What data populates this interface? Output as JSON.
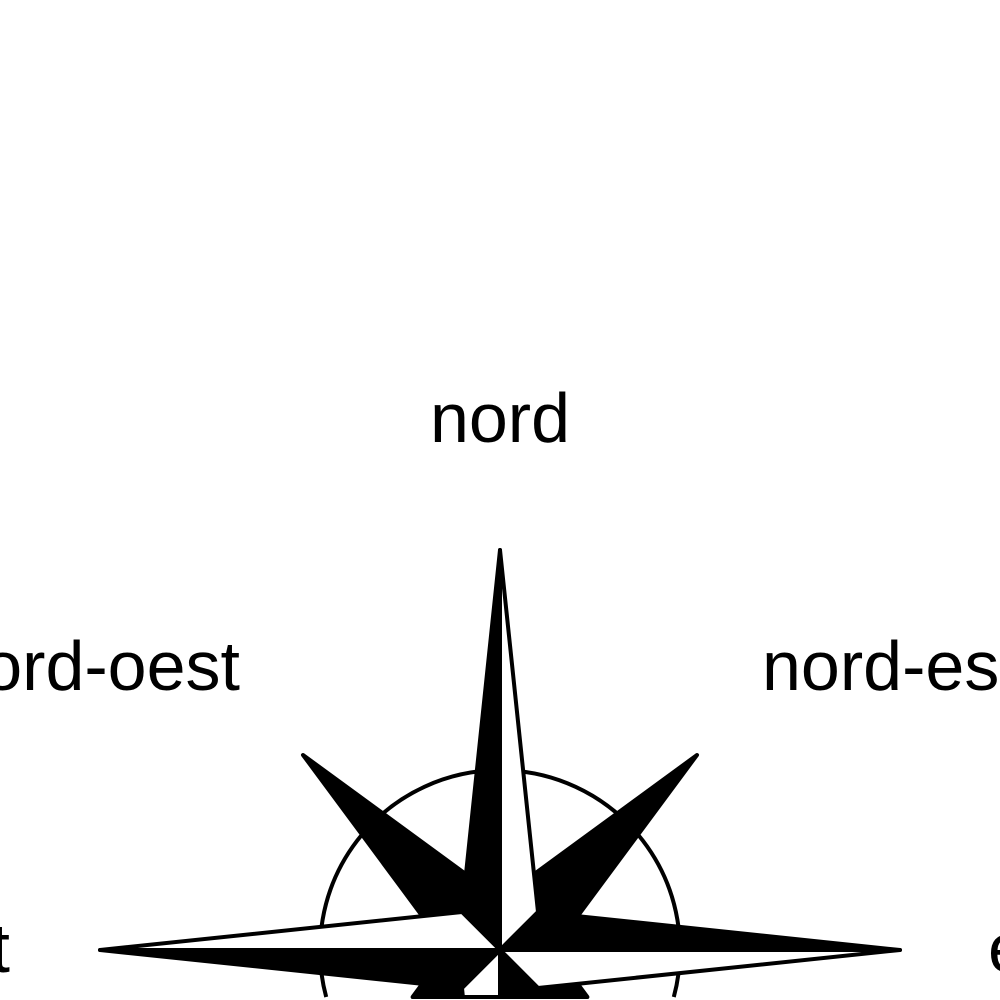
{
  "labels": {
    "north": "nord",
    "northwest": "nord-oest",
    "northeast": "nord-est",
    "west": "oest",
    "east": "est"
  },
  "colors": {
    "ink": "#000000",
    "background": "#ffffff"
  }
}
